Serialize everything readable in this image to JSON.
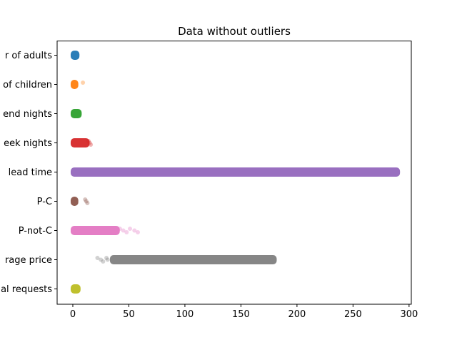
{
  "chart_data": {
    "type": "scatter",
    "title": "Data without outliers",
    "xlabel": "",
    "ylabel": "",
    "xlim": [
      -14,
      302
    ],
    "x_ticks": [
      0,
      50,
      100,
      150,
      200,
      250,
      300
    ],
    "x_tick_labels": [
      "0",
      "50",
      "100",
      "150",
      "200",
      "250",
      "300"
    ],
    "grid": false,
    "legend": "none",
    "categories": [
      "r of adults",
      "of children",
      "end nights",
      "eek nights",
      "lead time",
      "P-C",
      "P-not-C",
      "rage price",
      "al requests"
    ],
    "series": [
      {
        "color": "#1f77b4",
        "min": 0,
        "max": 4,
        "outliers": []
      },
      {
        "color": "#ff7f0e",
        "min": 0,
        "max": 3,
        "outliers": [
          9
        ]
      },
      {
        "color": "#2ca02c",
        "min": 0,
        "max": 6,
        "outliers": []
      },
      {
        "color": "#d62728",
        "min": 0,
        "max": 13,
        "outliers": [
          14,
          15,
          16
        ]
      },
      {
        "color": "#9467bd",
        "min": 0,
        "max": 290,
        "outliers": []
      },
      {
        "color": "#8c564b",
        "min": 0,
        "max": 3,
        "outliers": [
          11,
          12,
          13
        ]
      },
      {
        "color": "#e377c2",
        "min": 0,
        "max": 40,
        "outliers": [
          42,
          45,
          48,
          51,
          55,
          58
        ]
      },
      {
        "color": "#7f7f7f",
        "min": 35,
        "max": 180,
        "outliers": [
          22,
          25,
          27,
          30,
          31
        ]
      },
      {
        "color": "#bcbd22",
        "min": 0,
        "max": 5,
        "outliers": []
      }
    ]
  }
}
